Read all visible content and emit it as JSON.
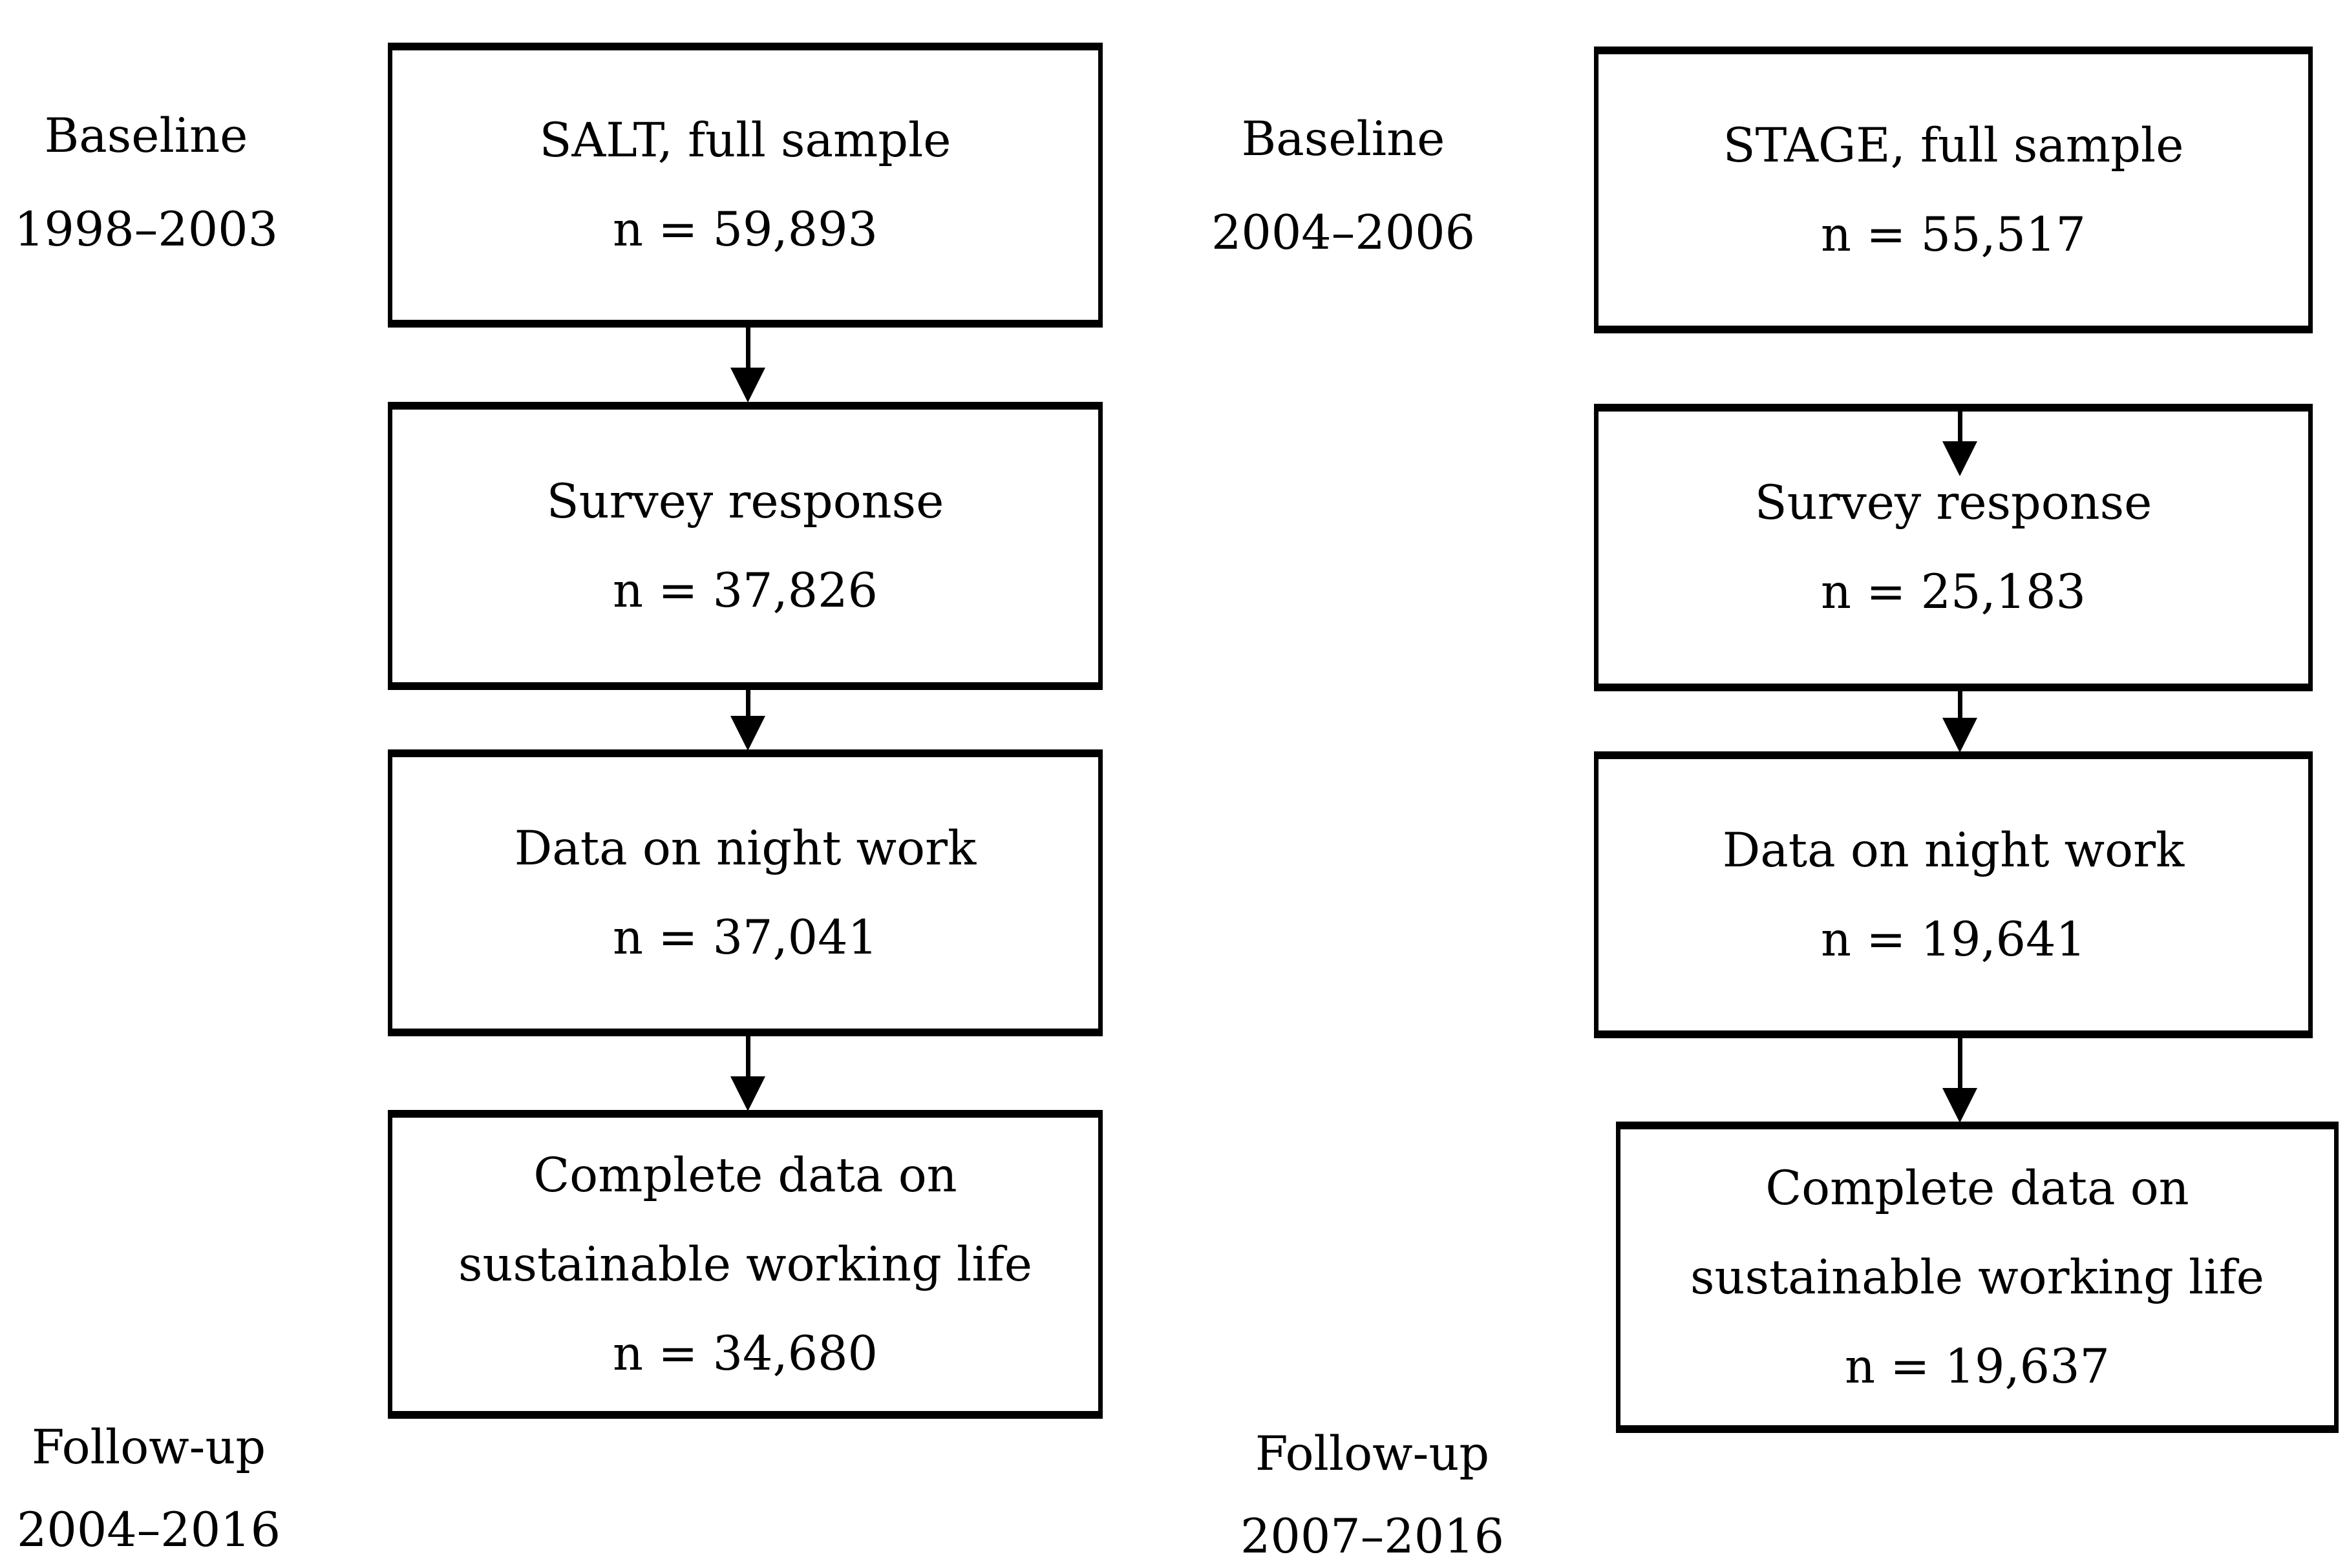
{
  "page": {
    "background_color": "#ffffff",
    "ink_color": "#000000",
    "description": "Participant flow diagram with two parallel cohorts"
  },
  "columns": [
    {
      "id": "salt",
      "top_label": {
        "line1": "Baseline",
        "line2": "1998–2003"
      },
      "bottom_label": {
        "line1": "Follow-up",
        "line2": "2004–2016"
      },
      "boxes": [
        {
          "lines": [
            "SALT, full sample",
            "n = 59,893"
          ]
        },
        {
          "lines": [
            "Survey response",
            "n = 37,826"
          ]
        },
        {
          "lines": [
            "Data on night work",
            "n = 37,041"
          ]
        },
        {
          "lines": [
            "Complete data on",
            "sustainable working life",
            "n = 34,680"
          ]
        }
      ]
    },
    {
      "id": "stage",
      "top_label": {
        "line1": "Baseline",
        "line2": "2004–2006"
      },
      "bottom_label": {
        "line1": "Follow-up",
        "line2": "2007–2016"
      },
      "boxes": [
        {
          "lines": [
            "STAGE, full sample",
            "n = 55,517"
          ]
        },
        {
          "lines": [
            "Survey response",
            "n = 25,183"
          ]
        },
        {
          "lines": [
            "Data on night work",
            "n = 19,641"
          ]
        },
        {
          "lines": [
            "Complete data on",
            "sustainable working life",
            "n = 19,637"
          ]
        }
      ]
    }
  ]
}
